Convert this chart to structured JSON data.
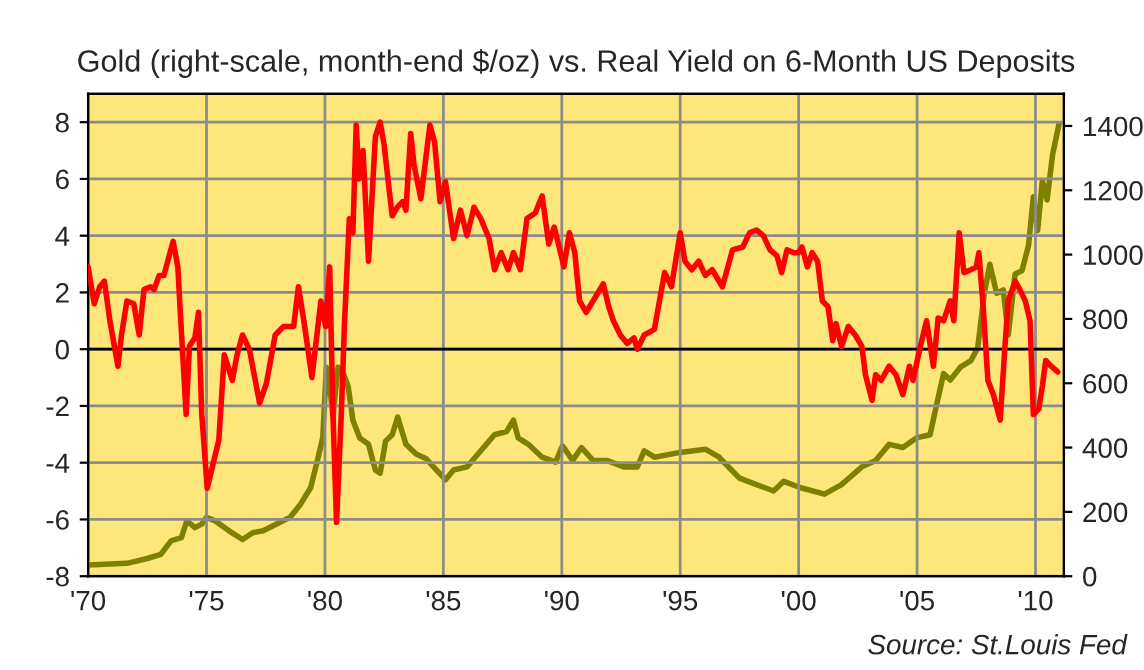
{
  "chart_data": {
    "type": "line",
    "title": "Gold (right-scale, month-end $/oz) vs. Real Yield on 6-Month US Deposits",
    "xlim": [
      1970,
      2011.2
    ],
    "xticks": [
      {
        "value": 1970,
        "label": "'70"
      },
      {
        "value": 1975,
        "label": "'75"
      },
      {
        "value": 1980,
        "label": "'80"
      },
      {
        "value": 1985,
        "label": "'85"
      },
      {
        "value": 1990,
        "label": "'90"
      },
      {
        "value": 1995,
        "label": "'95"
      },
      {
        "value": 2000,
        "label": "'00"
      },
      {
        "value": 2005,
        "label": "'05"
      },
      {
        "value": 2010,
        "label": "'10"
      }
    ],
    "ylim": [
      -8,
      9
    ],
    "yticks": [
      -8,
      -6,
      -4,
      -2,
      0,
      2,
      4,
      6,
      8
    ],
    "y2lim": [
      0,
      1500
    ],
    "y2ticks": [
      0,
      200,
      400,
      600,
      800,
      1000,
      1200,
      1400
    ],
    "grid": true,
    "marker": "none",
    "line_style": "solid",
    "ref_lines": [
      {
        "axis": "y",
        "value": 0,
        "color": "#000000"
      }
    ],
    "annotations": [
      "Source: St.Louis Fed"
    ],
    "series": [
      {
        "color": "#808000",
        "axis": "y2",
        "x": [
          1970.0,
          1971.64,
          1972.5,
          1973.07,
          1973.5,
          1973.94,
          1974.17,
          1974.51,
          1974.8,
          1975.0,
          1975.37,
          1975.95,
          1976.52,
          1976.95,
          1977.39,
          1977.96,
          1978.53,
          1978.97,
          1979.4,
          1979.68,
          1979.91,
          1980.06,
          1980.2,
          1980.34,
          1980.55,
          1980.78,
          1980.98,
          1981.18,
          1981.47,
          1981.84,
          1982.13,
          1982.33,
          1982.56,
          1982.84,
          1983.07,
          1983.42,
          1983.85,
          1984.28,
          1984.71,
          1985.09,
          1985.43,
          1986.0,
          1986.58,
          1987.16,
          1987.67,
          1987.96,
          1988.16,
          1988.59,
          1989.17,
          1989.74,
          1990.03,
          1990.46,
          1990.83,
          1991.32,
          1991.9,
          1992.61,
          1993.19,
          1993.48,
          1993.91,
          1995.0,
          1996.06,
          1996.64,
          1997.5,
          1998.22,
          1998.94,
          1999.37,
          2000.09,
          2001.09,
          2001.81,
          2002.67,
          2003.25,
          2003.82,
          2004.4,
          2004.97,
          2005.55,
          2005.83,
          2006.12,
          2006.4,
          2006.83,
          2007.27,
          2007.56,
          2007.84,
          2008.07,
          2008.36,
          2008.64,
          2008.85,
          2009.14,
          2009.43,
          2009.71,
          2009.91,
          2010.09,
          2010.29,
          2010.49,
          2010.72,
          2010.99
        ],
        "values": [
          35,
          40,
          55,
          68,
          110,
          120,
          172,
          151,
          162,
          183,
          172,
          141,
          114,
          135,
          141,
          162,
          183,
          224,
          276,
          359,
          432,
          650,
          590,
          495,
          650,
          630,
          590,
          485,
          430,
          410,
          330,
          320,
          420,
          440,
          495,
          410,
          380,
          365,
          330,
          300,
          330,
          340,
          390,
          440,
          450,
          485,
          430,
          410,
          370,
          355,
          405,
          360,
          400,
          360,
          360,
          340,
          340,
          390,
          370,
          385,
          395,
          370,
          305,
          285,
          265,
          295,
          275,
          255,
          285,
          340,
          360,
          410,
          400,
          430,
          440,
          535,
          630,
          610,
          650,
          670,
          710,
          880,
          970,
          880,
          890,
          750,
          940,
          950,
          1030,
          1180,
          1075,
          1230,
          1170,
          1310,
          1405
        ]
      },
      {
        "color": "#ff0000",
        "x": [
          1970.0,
          1970.26,
          1970.49,
          1970.69,
          1970.92,
          1971.26,
          1971.41,
          1971.64,
          1971.93,
          1972.16,
          1972.36,
          1972.64,
          1972.79,
          1973.0,
          1973.2,
          1973.59,
          1973.79,
          1973.88,
          1974.14,
          1974.28,
          1974.51,
          1974.66,
          1974.8,
          1975.03,
          1975.52,
          1975.75,
          1976.09,
          1976.29,
          1976.52,
          1976.81,
          1977.24,
          1977.53,
          1977.9,
          1978.25,
          1978.68,
          1978.88,
          1979.11,
          1979.45,
          1979.83,
          1980.03,
          1980.2,
          1980.34,
          1980.49,
          1980.69,
          1980.83,
          1981.03,
          1981.18,
          1981.32,
          1981.44,
          1981.61,
          1981.84,
          1982.13,
          1982.33,
          1982.5,
          1982.7,
          1982.84,
          1983.05,
          1983.28,
          1983.42,
          1983.62,
          1983.76,
          1984.05,
          1984.43,
          1984.63,
          1984.86,
          1985.09,
          1985.43,
          1985.72,
          1986.0,
          1986.29,
          1986.58,
          1986.93,
          1987.16,
          1987.44,
          1987.73,
          1987.96,
          1988.25,
          1988.53,
          1988.88,
          1989.17,
          1989.45,
          1989.68,
          1989.89,
          1990.09,
          1990.32,
          1990.55,
          1990.75,
          1991.03,
          1991.32,
          1991.75,
          1991.98,
          1992.18,
          1992.47,
          1992.76,
          1993.05,
          1993.19,
          1993.48,
          1993.91,
          1994.34,
          1994.63,
          1995.0,
          1995.2,
          1995.49,
          1995.78,
          1996.06,
          1996.35,
          1996.78,
          1997.21,
          1997.64,
          1997.93,
          1998.22,
          1998.51,
          1998.79,
          1999.08,
          1999.28,
          1999.51,
          1999.8,
          2000.0,
          2000.14,
          2000.37,
          2000.57,
          2000.8,
          2001.0,
          2001.24,
          2001.44,
          2001.58,
          2001.81,
          2002.1,
          2002.39,
          2002.67,
          2002.82,
          2003.1,
          2003.25,
          2003.48,
          2003.82,
          2004.11,
          2004.4,
          2004.68,
          2004.83,
          2005.11,
          2005.4,
          2005.69,
          2005.89,
          2006.12,
          2006.4,
          2006.55,
          2006.78,
          2006.98,
          2007.27,
          2007.5,
          2007.61,
          2007.79,
          2007.99,
          2008.22,
          2008.51,
          2008.71,
          2008.85,
          2009.14,
          2009.34,
          2009.57,
          2009.77,
          2009.91,
          2010.14,
          2010.29,
          2010.43,
          2010.66,
          2010.94
        ],
        "values": [
          2.9,
          1.6,
          2.2,
          2.4,
          1.0,
          -0.6,
          0.5,
          1.7,
          1.6,
          0.5,
          2.1,
          2.2,
          2.1,
          2.6,
          2.6,
          3.8,
          2.9,
          1.5,
          -2.3,
          0.1,
          0.4,
          1.3,
          -2.3,
          -4.9,
          -3.2,
          -0.2,
          -1.1,
          -0.2,
          0.5,
          0.0,
          -1.9,
          -1.2,
          0.5,
          0.8,
          0.8,
          2.2,
          1.0,
          -1.0,
          1.7,
          0.8,
          2.9,
          -2.3,
          -6.1,
          -2.3,
          1.0,
          4.6,
          4.1,
          7.9,
          6.0,
          7.0,
          3.1,
          7.5,
          8.0,
          7.2,
          5.7,
          4.7,
          5.0,
          5.2,
          4.9,
          7.6,
          6.5,
          5.3,
          7.9,
          7.3,
          5.2,
          5.9,
          3.9,
          4.9,
          4.0,
          5.0,
          4.6,
          3.9,
          2.8,
          3.4,
          2.8,
          3.4,
          2.8,
          4.6,
          4.8,
          5.4,
          3.7,
          4.3,
          3.6,
          2.9,
          4.1,
          3.4,
          1.7,
          1.3,
          1.7,
          2.3,
          1.5,
          1.0,
          0.5,
          0.2,
          0.4,
          0.0,
          0.5,
          0.7,
          2.7,
          2.2,
          4.1,
          3.1,
          2.8,
          3.1,
          2.6,
          2.8,
          2.2,
          3.5,
          3.6,
          4.1,
          4.2,
          4.0,
          3.5,
          3.3,
          2.7,
          3.5,
          3.4,
          3.4,
          3.6,
          2.9,
          3.4,
          3.1,
          1.7,
          1.5,
          0.3,
          0.9,
          0.1,
          0.8,
          0.5,
          0.1,
          -0.9,
          -1.8,
          -0.9,
          -1.1,
          -0.6,
          -0.9,
          -1.6,
          -0.6,
          -1.1,
          0.0,
          1.0,
          -0.6,
          1.1,
          1.0,
          1.7,
          1.0,
          4.1,
          2.7,
          2.8,
          2.9,
          3.4,
          1.5,
          -1.1,
          -1.6,
          -2.5,
          0.1,
          1.7,
          2.4,
          2.1,
          1.7,
          1.0,
          -2.3,
          -2.1,
          -1.3,
          -0.4,
          -0.6,
          -0.8
        ]
      }
    ]
  }
}
